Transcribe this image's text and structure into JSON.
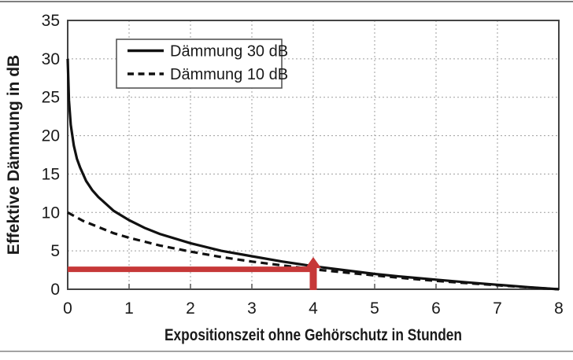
{
  "chart_data": {
    "type": "line",
    "title": "",
    "xlabel": "Expositionszeit ohne Gehörschutz in Stunden",
    "ylabel": "Effektive Dämmung in dB",
    "xlim": [
      0,
      8
    ],
    "ylim": [
      0,
      35
    ],
    "x_ticks": [
      0,
      1,
      2,
      3,
      4,
      5,
      6,
      7,
      8
    ],
    "y_ticks": [
      0,
      5,
      10,
      15,
      20,
      25,
      30,
      35
    ],
    "grid": true,
    "grid_color": "#9e9e9e",
    "frame_color": "#444444",
    "text_color": "#1a1a1a",
    "legend_position": "top-left-inside",
    "series": [
      {
        "name": "Dämmung 30 dB",
        "style": "solid",
        "color": "#111111",
        "x": [
          0,
          0.02,
          0.05,
          0.1,
          0.15,
          0.2,
          0.3,
          0.4,
          0.5,
          0.75,
          1,
          1.25,
          1.5,
          2,
          2.5,
          3,
          3.5,
          4,
          4.5,
          5,
          5.5,
          6,
          6.5,
          7,
          7.5,
          8
        ],
        "y": [
          30,
          24.6,
          21.4,
          18.7,
          17.0,
          15.9,
          14.1,
          12.9,
          12.0,
          10.2,
          9.0,
          8.0,
          7.2,
          6.0,
          5.0,
          4.3,
          3.6,
          3.0,
          2.5,
          2.0,
          1.6,
          1.25,
          0.9,
          0.58,
          0.28,
          0
        ]
      },
      {
        "name": "Dämmung 10 dB",
        "style": "dashed",
        "color": "#111111",
        "x": [
          0,
          0.25,
          0.5,
          0.75,
          1,
          1.5,
          2,
          2.5,
          3,
          3.5,
          4,
          4.5,
          5,
          5.5,
          6,
          6.5,
          7,
          7.5,
          8
        ],
        "y": [
          10,
          8.9,
          8.1,
          7.3,
          6.7,
          5.7,
          4.9,
          4.2,
          3.6,
          3.1,
          2.6,
          2.2,
          1.8,
          1.43,
          1.1,
          0.8,
          0.52,
          0.25,
          0
        ]
      }
    ],
    "annotation": {
      "color": "#c63838",
      "h_line": {
        "y": 2.6,
        "x_from": 0,
        "x_to": 4
      },
      "v_arrow": {
        "x": 4,
        "y_from": 0,
        "y_tip": 4.2
      }
    }
  }
}
